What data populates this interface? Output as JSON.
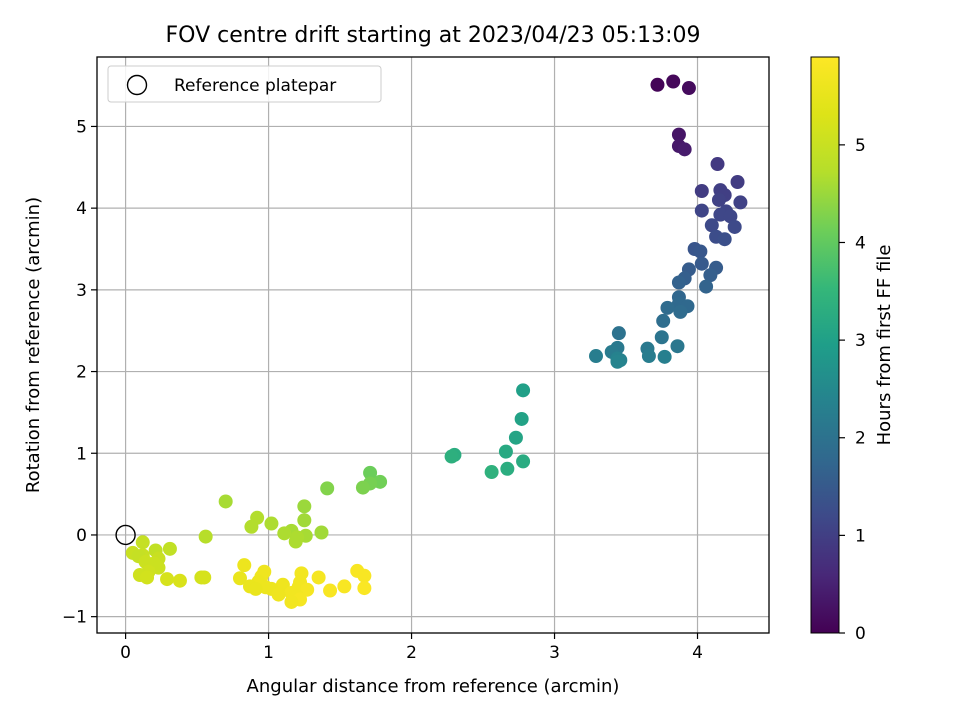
{
  "chart_data": {
    "type": "scatter",
    "title": "FOV centre drift starting at 2023/04/23 05:13:09",
    "xlabel": "Angular distance from reference (arcmin)",
    "ylabel": "Rotation from reference (arcmin)",
    "xlim": [
      -0.2,
      4.5
    ],
    "ylim": [
      -1.2,
      5.85
    ],
    "xticks": [
      0,
      1,
      2,
      3,
      4
    ],
    "yticks": [
      -1,
      0,
      1,
      2,
      3,
      4,
      5
    ],
    "grid": true,
    "legend": {
      "label": "Reference platepar",
      "placement": "top-left"
    },
    "colorbar": {
      "label": "Hours from first FF file",
      "range": [
        0,
        5.9
      ],
      "ticks": [
        0,
        1,
        2,
        3,
        4,
        5
      ],
      "colormap": "viridis"
    },
    "reference_point": {
      "x": 0,
      "y": 0
    },
    "points": [
      {
        "x": 3.72,
        "y": 5.51,
        "c": 0.05
      },
      {
        "x": 3.83,
        "y": 5.55,
        "c": 0.1
      },
      {
        "x": 3.94,
        "y": 5.47,
        "c": 0.15
      },
      {
        "x": 3.87,
        "y": 4.9,
        "c": 0.3
      },
      {
        "x": 3.87,
        "y": 4.76,
        "c": 0.35
      },
      {
        "x": 3.91,
        "y": 4.72,
        "c": 0.4
      },
      {
        "x": 4.14,
        "y": 4.54,
        "c": 0.9
      },
      {
        "x": 4.28,
        "y": 4.32,
        "c": 0.95
      },
      {
        "x": 4.03,
        "y": 4.21,
        "c": 0.95
      },
      {
        "x": 4.16,
        "y": 4.22,
        "c": 1.0
      },
      {
        "x": 4.19,
        "y": 4.16,
        "c": 1.0
      },
      {
        "x": 4.15,
        "y": 4.1,
        "c": 1.05
      },
      {
        "x": 4.3,
        "y": 4.07,
        "c": 1.05
      },
      {
        "x": 4.03,
        "y": 3.97,
        "c": 1.1
      },
      {
        "x": 4.2,
        "y": 3.96,
        "c": 1.1
      },
      {
        "x": 4.16,
        "y": 3.92,
        "c": 1.15
      },
      {
        "x": 4.23,
        "y": 3.9,
        "c": 1.15
      },
      {
        "x": 4.1,
        "y": 3.79,
        "c": 1.2
      },
      {
        "x": 4.26,
        "y": 3.77,
        "c": 1.2
      },
      {
        "x": 4.13,
        "y": 3.65,
        "c": 1.25
      },
      {
        "x": 4.19,
        "y": 3.62,
        "c": 1.3
      },
      {
        "x": 3.98,
        "y": 3.5,
        "c": 1.4
      },
      {
        "x": 4.02,
        "y": 3.47,
        "c": 1.45
      },
      {
        "x": 4.03,
        "y": 3.32,
        "c": 1.5
      },
      {
        "x": 3.94,
        "y": 3.25,
        "c": 1.55
      },
      {
        "x": 4.13,
        "y": 3.27,
        "c": 1.55
      },
      {
        "x": 4.09,
        "y": 3.18,
        "c": 1.6
      },
      {
        "x": 3.91,
        "y": 3.14,
        "c": 1.6
      },
      {
        "x": 3.87,
        "y": 3.09,
        "c": 1.65
      },
      {
        "x": 4.06,
        "y": 3.04,
        "c": 1.7
      },
      {
        "x": 3.87,
        "y": 2.91,
        "c": 1.75
      },
      {
        "x": 3.87,
        "y": 2.83,
        "c": 1.8
      },
      {
        "x": 3.93,
        "y": 2.8,
        "c": 1.8
      },
      {
        "x": 3.79,
        "y": 2.78,
        "c": 1.85
      },
      {
        "x": 3.88,
        "y": 2.73,
        "c": 1.85
      },
      {
        "x": 3.76,
        "y": 2.62,
        "c": 1.9
      },
      {
        "x": 3.45,
        "y": 2.47,
        "c": 2.0
      },
      {
        "x": 3.75,
        "y": 2.42,
        "c": 2.05
      },
      {
        "x": 3.86,
        "y": 2.31,
        "c": 2.1
      },
      {
        "x": 3.44,
        "y": 2.29,
        "c": 2.15
      },
      {
        "x": 3.65,
        "y": 2.28,
        "c": 2.15
      },
      {
        "x": 3.4,
        "y": 2.24,
        "c": 2.2
      },
      {
        "x": 3.29,
        "y": 2.19,
        "c": 2.25
      },
      {
        "x": 3.66,
        "y": 2.19,
        "c": 2.25
      },
      {
        "x": 3.77,
        "y": 2.18,
        "c": 2.3
      },
      {
        "x": 3.44,
        "y": 2.16,
        "c": 2.35
      },
      {
        "x": 3.46,
        "y": 2.14,
        "c": 2.35
      },
      {
        "x": 3.44,
        "y": 2.12,
        "c": 2.4
      },
      {
        "x": 2.78,
        "y": 1.77,
        "c": 3.0
      },
      {
        "x": 2.77,
        "y": 1.42,
        "c": 3.05
      },
      {
        "x": 2.73,
        "y": 1.19,
        "c": 3.1
      },
      {
        "x": 2.66,
        "y": 1.02,
        "c": 3.2
      },
      {
        "x": 2.3,
        "y": 0.98,
        "c": 3.3
      },
      {
        "x": 2.28,
        "y": 0.96,
        "c": 3.35
      },
      {
        "x": 2.78,
        "y": 0.9,
        "c": 3.25
      },
      {
        "x": 2.67,
        "y": 0.81,
        "c": 3.3
      },
      {
        "x": 2.56,
        "y": 0.77,
        "c": 3.4
      },
      {
        "x": 1.71,
        "y": 0.76,
        "c": 4.1
      },
      {
        "x": 1.78,
        "y": 0.65,
        "c": 4.15
      },
      {
        "x": 1.71,
        "y": 0.63,
        "c": 4.2
      },
      {
        "x": 1.66,
        "y": 0.58,
        "c": 4.25
      },
      {
        "x": 1.41,
        "y": 0.57,
        "c": 4.3
      },
      {
        "x": 0.7,
        "y": 0.41,
        "c": 4.6
      },
      {
        "x": 1.25,
        "y": 0.35,
        "c": 4.5
      },
      {
        "x": 0.92,
        "y": 0.21,
        "c": 4.7
      },
      {
        "x": 1.25,
        "y": 0.18,
        "c": 4.55
      },
      {
        "x": 1.02,
        "y": 0.14,
        "c": 4.65
      },
      {
        "x": 0.88,
        "y": 0.1,
        "c": 4.7
      },
      {
        "x": 1.16,
        "y": 0.05,
        "c": 4.6
      },
      {
        "x": 1.37,
        "y": 0.03,
        "c": 4.55
      },
      {
        "x": 1.11,
        "y": 0.02,
        "c": 4.65
      },
      {
        "x": 1.26,
        "y": -0.01,
        "c": 4.6
      },
      {
        "x": 0.56,
        "y": -0.02,
        "c": 4.75
      },
      {
        "x": 1.2,
        "y": -0.03,
        "c": 4.65
      },
      {
        "x": 1.19,
        "y": -0.08,
        "c": 4.65
      },
      {
        "x": 0.12,
        "y": -0.09,
        "c": 4.95
      },
      {
        "x": 0.31,
        "y": -0.17,
        "c": 4.9
      },
      {
        "x": 0.21,
        "y": -0.19,
        "c": 4.9
      },
      {
        "x": 0.05,
        "y": -0.22,
        "c": 5.0
      },
      {
        "x": 0.12,
        "y": -0.25,
        "c": 5.0
      },
      {
        "x": 0.09,
        "y": -0.26,
        "c": 4.95
      },
      {
        "x": 0.23,
        "y": -0.29,
        "c": 5.0
      },
      {
        "x": 0.14,
        "y": -0.33,
        "c": 5.05
      },
      {
        "x": 0.2,
        "y": -0.35,
        "c": 5.05
      },
      {
        "x": 0.23,
        "y": -0.4,
        "c": 5.05
      },
      {
        "x": 0.16,
        "y": -0.45,
        "c": 5.1
      },
      {
        "x": 0.1,
        "y": -0.49,
        "c": 5.1
      },
      {
        "x": 0.15,
        "y": -0.52,
        "c": 5.15
      },
      {
        "x": 0.53,
        "y": -0.52,
        "c": 5.15
      },
      {
        "x": 0.55,
        "y": -0.52,
        "c": 5.2
      },
      {
        "x": 0.29,
        "y": -0.54,
        "c": 5.2
      },
      {
        "x": 0.38,
        "y": -0.56,
        "c": 5.25
      },
      {
        "x": 0.83,
        "y": -0.37,
        "c": 5.6
      },
      {
        "x": 0.97,
        "y": -0.45,
        "c": 5.65
      },
      {
        "x": 1.62,
        "y": -0.44,
        "c": 5.8
      },
      {
        "x": 1.23,
        "y": -0.47,
        "c": 5.7
      },
      {
        "x": 1.67,
        "y": -0.5,
        "c": 5.8
      },
      {
        "x": 0.95,
        "y": -0.51,
        "c": 5.65
      },
      {
        "x": 0.8,
        "y": -0.53,
        "c": 5.55
      },
      {
        "x": 1.35,
        "y": -0.52,
        "c": 5.75
      },
      {
        "x": 0.93,
        "y": -0.57,
        "c": 5.6
      },
      {
        "x": 1.22,
        "y": -0.58,
        "c": 5.7
      },
      {
        "x": 1.1,
        "y": -0.61,
        "c": 5.65
      },
      {
        "x": 0.87,
        "y": -0.63,
        "c": 5.55
      },
      {
        "x": 1.53,
        "y": -0.63,
        "c": 5.8
      },
      {
        "x": 0.98,
        "y": -0.64,
        "c": 5.6
      },
      {
        "x": 1.21,
        "y": -0.64,
        "c": 5.7
      },
      {
        "x": 1.67,
        "y": -0.65,
        "c": 5.85
      },
      {
        "x": 0.91,
        "y": -0.66,
        "c": 5.55
      },
      {
        "x": 1.02,
        "y": -0.66,
        "c": 5.6
      },
      {
        "x": 1.27,
        "y": -0.67,
        "c": 5.75
      },
      {
        "x": 1.43,
        "y": -0.68,
        "c": 5.8
      },
      {
        "x": 1.16,
        "y": -0.71,
        "c": 5.7
      },
      {
        "x": 1.07,
        "y": -0.73,
        "c": 5.65
      },
      {
        "x": 1.2,
        "y": -0.75,
        "c": 5.7
      },
      {
        "x": 1.22,
        "y": -0.79,
        "c": 5.75
      },
      {
        "x": 1.16,
        "y": -0.82,
        "c": 5.7
      }
    ]
  }
}
